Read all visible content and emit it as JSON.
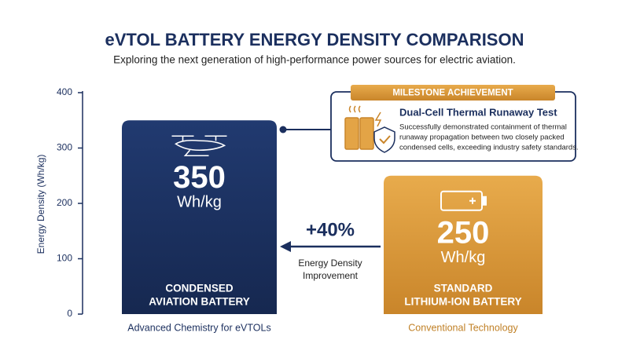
{
  "chart_data": {
    "type": "bar",
    "title": "eVTOL BATTERY ENERGY DENSITY COMPARISON",
    "subtitle": "Exploring the next generation of high-performance power sources for electric aviation.",
    "y_label": "Energy Density (Wh/kg)",
    "categories": [
      "Advanced Chemistry for eVTOLs",
      "Conventional Technology"
    ],
    "values": [
      350,
      250
    ],
    "colors": [
      "#1b2f5e",
      "#d6993c"
    ],
    "category_label_colors": [
      "#1b2f5e",
      "#c08026"
    ],
    "unit_label": "Wh/kg",
    "bar_labels": [
      [
        "CONDENSED",
        "AVIATION BATTERY"
      ],
      [
        "STANDARD",
        "LITHIUM-ION BATTERY"
      ]
    ],
    "ylim": [
      0,
      400
    ],
    "yticks": [
      0,
      100,
      200,
      300,
      400
    ],
    "grid": false,
    "annotation": {
      "text": "+40%",
      "caption": [
        "Energy Density",
        "Improvement"
      ]
    },
    "callout": {
      "badge": "MILESTONE ACHIEVEMENT",
      "title": "Dual-Cell Thermal Runaway Test",
      "description": [
        "Successfully demonstrated containment of thermal",
        "runaway propagation between two closely packed",
        "condensed cells, exceeding industry safety standards."
      ]
    }
  }
}
